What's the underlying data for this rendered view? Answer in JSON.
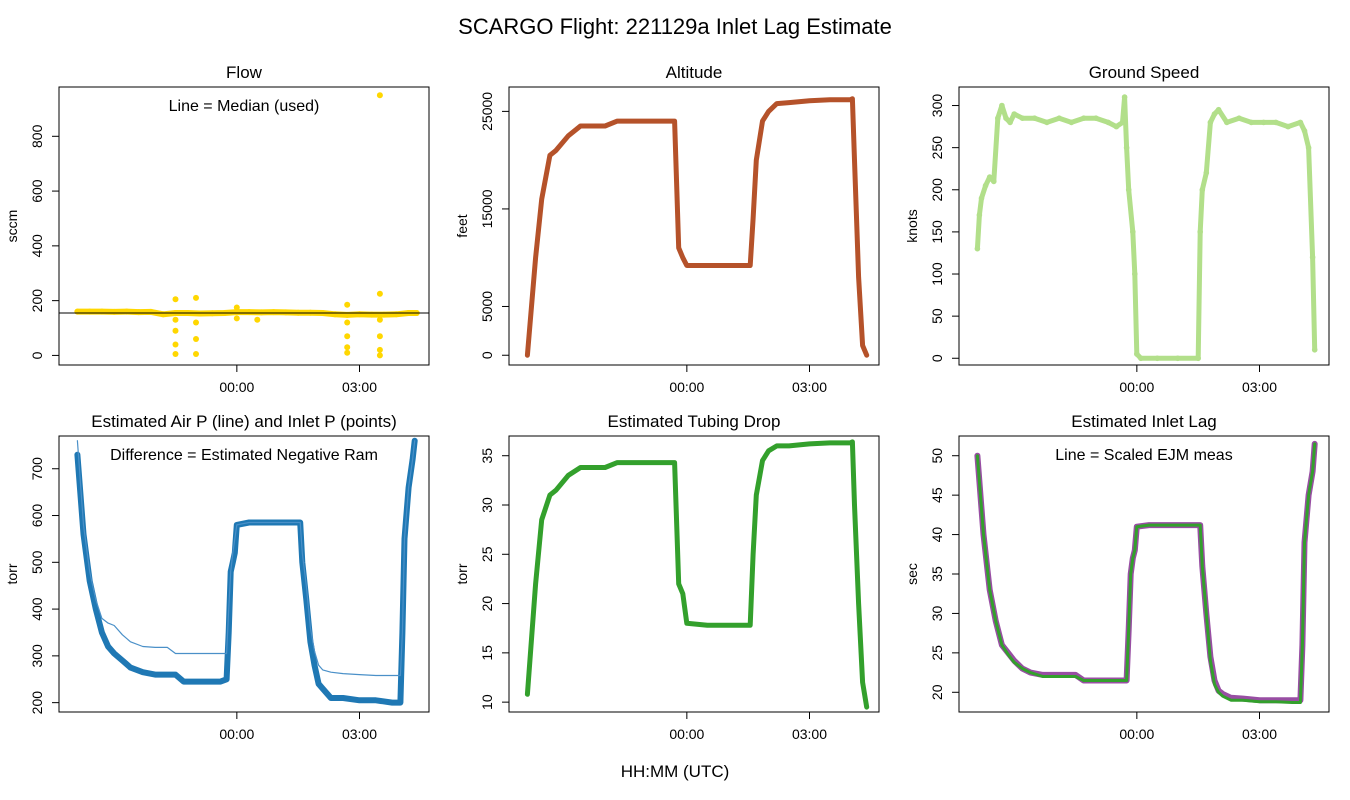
{
  "figure": {
    "title": "SCARGO Flight: 221129a  Inlet Lag Estimate",
    "xlabel": "HH:MM (UTC)"
  },
  "chart_data": [
    {
      "id": "flow",
      "type": "scatter",
      "title": "Flow",
      "ylabel": "sccm",
      "ylim": [
        -35,
        980
      ],
      "yticks": [
        0,
        200,
        400,
        600,
        800
      ],
      "xlim": [
        -4.35,
        4.7
      ],
      "xticks": [
        0,
        3
      ],
      "xticklabels": [
        "00:00",
        "03:00"
      ],
      "annotation": "Line = Median (used)",
      "hline": 155,
      "colors": {
        "points": "#FFD700",
        "line": "#000000"
      },
      "series": [
        {
          "name": "points",
          "x": [
            -3.9,
            -3.6,
            -3.3,
            -3.0,
            -2.7,
            -2.4,
            -2.1,
            -1.8,
            -1.5,
            -1.2,
            -0.9,
            -0.6,
            -0.3,
            0.0,
            0.3,
            0.6,
            0.9,
            1.2,
            1.5,
            1.8,
            2.1,
            2.4,
            2.7,
            3.0,
            3.3,
            3.6,
            3.9,
            4.2,
            4.4,
            -1.5,
            -1.5,
            -1.5,
            -1.5,
            -1.5,
            -1.0,
            -1.0,
            -1.0,
            -1.0,
            0.0,
            0.0,
            0.5,
            2.7,
            2.7,
            2.7,
            2.7,
            2.7,
            3.5,
            3.5,
            3.5,
            3.5,
            3.5
          ],
          "y": [
            160,
            160,
            160,
            159,
            160,
            158,
            159,
            150,
            155,
            155,
            153,
            154,
            155,
            158,
            158,
            157,
            158,
            157,
            156,
            156,
            155,
            150,
            148,
            150,
            149,
            149,
            150,
            155,
            155,
            205,
            130,
            90,
            40,
            5,
            210,
            120,
            60,
            5,
            175,
            135,
            130,
            185,
            120,
            70,
            30,
            10,
            225,
            130,
            70,
            20,
            0
          ]
        },
        {
          "name": "outlier",
          "x": [
            3.5
          ],
          "y": [
            950
          ]
        }
      ]
    },
    {
      "id": "altitude",
      "type": "line",
      "title": "Altitude",
      "ylabel": "feet",
      "ylim": [
        -1000,
        27500
      ],
      "yticks": [
        0,
        5000,
        15000,
        25000
      ],
      "xlim": [
        -4.35,
        4.7
      ],
      "xticks": [
        0,
        3
      ],
      "xticklabels": [
        "00:00",
        "03:00"
      ],
      "colors": {
        "line": "#B5522A"
      },
      "series": [
        {
          "name": "Altitude",
          "x": [
            -3.9,
            -3.7,
            -3.55,
            -3.35,
            -3.2,
            -2.9,
            -2.6,
            -2.3,
            -2.0,
            -1.7,
            -1.4,
            -1.0,
            -0.6,
            -0.3,
            -0.2,
            -0.1,
            0.0,
            0.5,
            1.0,
            1.3,
            1.55,
            1.62,
            1.7,
            1.85,
            2.0,
            2.2,
            2.5,
            3.0,
            3.5,
            4.0,
            4.05,
            4.1,
            4.2,
            4.3,
            4.4
          ],
          "y": [
            0,
            10000,
            16000,
            20500,
            21000,
            22500,
            23500,
            23500,
            23500,
            24000,
            24000,
            24000,
            24000,
            24000,
            11000,
            10000,
            9200,
            9200,
            9200,
            9200,
            9200,
            14000,
            20000,
            24000,
            25000,
            25800,
            25900,
            26100,
            26200,
            26200,
            26300,
            20000,
            8000,
            1000,
            0
          ]
        }
      ]
    },
    {
      "id": "ground-speed",
      "type": "scatter",
      "title": "Ground Speed",
      "ylabel": "knots",
      "ylim": [
        -8,
        322
      ],
      "yticks": [
        0,
        50,
        100,
        150,
        200,
        250,
        300
      ],
      "xlim": [
        -4.35,
        4.7
      ],
      "xticks": [
        0,
        3
      ],
      "xticklabels": [
        "00:00",
        "03:00"
      ],
      "colors": {
        "points": "#B2DF8A"
      },
      "series": [
        {
          "name": "Ground Speed",
          "x": [
            -3.9,
            -3.85,
            -3.8,
            -3.7,
            -3.6,
            -3.5,
            -3.4,
            -3.3,
            -3.2,
            -3.1,
            -3.0,
            -2.8,
            -2.5,
            -2.2,
            -1.9,
            -1.6,
            -1.3,
            -1.0,
            -0.7,
            -0.5,
            -0.35,
            -0.3,
            -0.25,
            -0.2,
            -0.1,
            -0.05,
            0.0,
            0.1,
            0.5,
            1.0,
            1.5,
            1.55,
            1.6,
            1.7,
            1.8,
            1.9,
            2.0,
            2.2,
            2.5,
            2.8,
            3.1,
            3.4,
            3.7,
            4.0,
            4.1,
            4.2,
            4.3,
            4.35
          ],
          "y": [
            130,
            170,
            190,
            205,
            215,
            210,
            285,
            300,
            285,
            280,
            290,
            285,
            285,
            280,
            285,
            280,
            285,
            285,
            280,
            275,
            280,
            310,
            250,
            200,
            150,
            100,
            5,
            0,
            0,
            0,
            0,
            150,
            200,
            220,
            280,
            290,
            295,
            280,
            285,
            280,
            280,
            280,
            275,
            280,
            270,
            250,
            120,
            10
          ]
        }
      ]
    },
    {
      "id": "air-inlet-pressure",
      "type": "line",
      "title": "Estimated Air P (line) and Inlet P (points)",
      "ylabel": "torr",
      "ylim": [
        180,
        770
      ],
      "yticks": [
        200,
        300,
        400,
        500,
        600,
        700
      ],
      "xlim": [
        -4.35,
        4.7
      ],
      "xticks": [
        0,
        3
      ],
      "xticklabels": [
        "00:00",
        "03:00"
      ],
      "annotation": "Difference = Estimated Negative Ram",
      "colors": {
        "points": "#1F78B4",
        "line": "#4A90C8"
      },
      "series": [
        {
          "name": "Inlet P (points)",
          "x": [
            -3.9,
            -3.75,
            -3.6,
            -3.45,
            -3.3,
            -3.15,
            -3.0,
            -2.8,
            -2.6,
            -2.3,
            -2.0,
            -1.7,
            -1.5,
            -1.3,
            -1.0,
            -0.7,
            -0.4,
            -0.25,
            -0.2,
            -0.15,
            -0.1,
            -0.05,
            0.0,
            0.3,
            0.6,
            1.0,
            1.3,
            1.55,
            1.6,
            1.7,
            1.8,
            1.9,
            2.0,
            2.1,
            2.3,
            2.6,
            3.0,
            3.4,
            3.8,
            4.0,
            4.05,
            4.1,
            4.2,
            4.3,
            4.35
          ],
          "y": [
            730,
            560,
            460,
            400,
            350,
            320,
            305,
            290,
            275,
            265,
            260,
            260,
            260,
            245,
            245,
            245,
            245,
            250,
            350,
            480,
            500,
            520,
            580,
            585,
            585,
            585,
            585,
            585,
            500,
            420,
            330,
            280,
            240,
            230,
            210,
            210,
            205,
            205,
            200,
            200,
            350,
            550,
            660,
            720,
            760
          ]
        },
        {
          "name": "Air P (line)",
          "x": [
            -3.9,
            -3.75,
            -3.6,
            -3.45,
            -3.3,
            -3.15,
            -3.0,
            -2.8,
            -2.6,
            -2.3,
            -2.0,
            -1.7,
            -1.5,
            -1.3,
            -1.0,
            -0.7,
            -0.4,
            -0.25,
            -0.2,
            -0.15,
            -0.1,
            -0.05,
            0.0,
            0.3,
            0.6,
            1.0,
            1.3,
            1.55,
            1.6,
            1.7,
            1.8,
            1.9,
            2.0,
            2.1,
            2.3,
            2.6,
            3.0,
            3.4,
            3.8,
            4.0,
            4.05,
            4.1,
            4.2,
            4.3,
            4.35
          ],
          "y": [
            760,
            580,
            480,
            420,
            380,
            370,
            365,
            345,
            330,
            320,
            318,
            318,
            305,
            305,
            305,
            305,
            305,
            305,
            400,
            480,
            520,
            550,
            580,
            585,
            585,
            585,
            585,
            585,
            520,
            450,
            360,
            310,
            280,
            270,
            265,
            262,
            260,
            258,
            258,
            258,
            350,
            550,
            660,
            720,
            760
          ]
        }
      ]
    },
    {
      "id": "tubing-drop",
      "type": "line",
      "title": "Estimated Tubing Drop",
      "ylabel": "torr",
      "ylim": [
        9,
        37
      ],
      "yticks": [
        10,
        15,
        20,
        25,
        30,
        35
      ],
      "xlim": [
        -4.35,
        4.7
      ],
      "xticks": [
        0,
        3
      ],
      "xticklabels": [
        "00:00",
        "03:00"
      ],
      "colors": {
        "line": "#33A02C"
      },
      "series": [
        {
          "name": "Tubing Drop",
          "x": [
            -3.9,
            -3.7,
            -3.55,
            -3.35,
            -3.2,
            -2.9,
            -2.6,
            -2.3,
            -2.0,
            -1.7,
            -1.4,
            -1.0,
            -0.6,
            -0.3,
            -0.2,
            -0.1,
            0.0,
            0.5,
            1.0,
            1.3,
            1.55,
            1.62,
            1.7,
            1.85,
            2.0,
            2.2,
            2.5,
            3.0,
            3.5,
            4.0,
            4.05,
            4.1,
            4.2,
            4.3,
            4.4
          ],
          "y": [
            10.8,
            22,
            28.5,
            31,
            31.5,
            33,
            33.8,
            33.8,
            33.8,
            34.3,
            34.3,
            34.3,
            34.3,
            34.3,
            22,
            21,
            18,
            17.8,
            17.8,
            17.8,
            17.8,
            25,
            31,
            34.5,
            35.5,
            36,
            36,
            36.2,
            36.3,
            36.3,
            36.4,
            30,
            20,
            12,
            9.5
          ]
        }
      ]
    },
    {
      "id": "inlet-lag",
      "type": "line",
      "title": "Estimated Inlet Lag",
      "ylabel": "sec",
      "ylim": [
        17.5,
        52.5
      ],
      "yticks": [
        20,
        25,
        30,
        35,
        40,
        45,
        50
      ],
      "xlim": [
        -4.35,
        4.7
      ],
      "xticks": [
        0,
        3
      ],
      "xticklabels": [
        "00:00",
        "03:00"
      ],
      "annotation": "Line = Scaled EJM meas",
      "colors": {
        "points": "#33A02C",
        "line": "#984EA3"
      },
      "series": [
        {
          "name": "Inlet Lag (points)",
          "x": [
            -3.9,
            -3.75,
            -3.6,
            -3.45,
            -3.3,
            -3.15,
            -3.0,
            -2.8,
            -2.6,
            -2.3,
            -2.0,
            -1.7,
            -1.5,
            -1.3,
            -1.0,
            -0.7,
            -0.4,
            -0.25,
            -0.2,
            -0.15,
            -0.1,
            -0.05,
            0.0,
            0.3,
            0.6,
            1.0,
            1.3,
            1.55,
            1.6,
            1.7,
            1.8,
            1.9,
            2.0,
            2.1,
            2.3,
            2.6,
            3.0,
            3.4,
            3.8,
            4.0,
            4.05,
            4.1,
            4.2,
            4.3,
            4.35
          ],
          "y": [
            50,
            40,
            33,
            29,
            26,
            24.8,
            23.8,
            23,
            22.5,
            22,
            22,
            22,
            22,
            21.5,
            21.5,
            21.5,
            21.5,
            21.5,
            28,
            35,
            37,
            38,
            41,
            41.2,
            41.2,
            41.2,
            41.2,
            41.2,
            36,
            30,
            24,
            21,
            20,
            19.5,
            19,
            19,
            18.8,
            18.8,
            18.7,
            18.7,
            26,
            39,
            45,
            48,
            51.5
          ]
        },
        {
          "name": "Scaled EJM meas (line)",
          "x": [
            -3.9,
            -3.75,
            -3.6,
            -3.45,
            -3.3,
            -3.15,
            -3.0,
            -2.8,
            -2.6,
            -2.3,
            -2.0,
            -1.7,
            -1.5,
            -1.3,
            -1.0,
            -0.7,
            -0.4,
            -0.25,
            -0.2,
            -0.15,
            -0.1,
            -0.05,
            0.0,
            0.3,
            0.6,
            1.0,
            1.3,
            1.55,
            1.6,
            1.7,
            1.8,
            1.9,
            2.0,
            2.1,
            2.3,
            2.6,
            3.0,
            3.4,
            3.8,
            4.0,
            4.05,
            4.1,
            4.2,
            4.3,
            4.35
          ],
          "y": [
            50,
            40,
            33,
            29,
            26,
            25,
            24,
            23,
            22.5,
            22.2,
            22.2,
            22.2,
            22.2,
            21.5,
            21.5,
            21.5,
            21.5,
            21.5,
            28,
            35,
            37,
            38,
            41,
            41.2,
            41.2,
            41.2,
            41.2,
            41.2,
            36,
            30,
            24.5,
            21.5,
            20.2,
            19.8,
            19.3,
            19.2,
            19,
            19,
            19,
            19,
            26,
            39,
            45,
            48,
            51.5
          ]
        }
      ]
    }
  ]
}
